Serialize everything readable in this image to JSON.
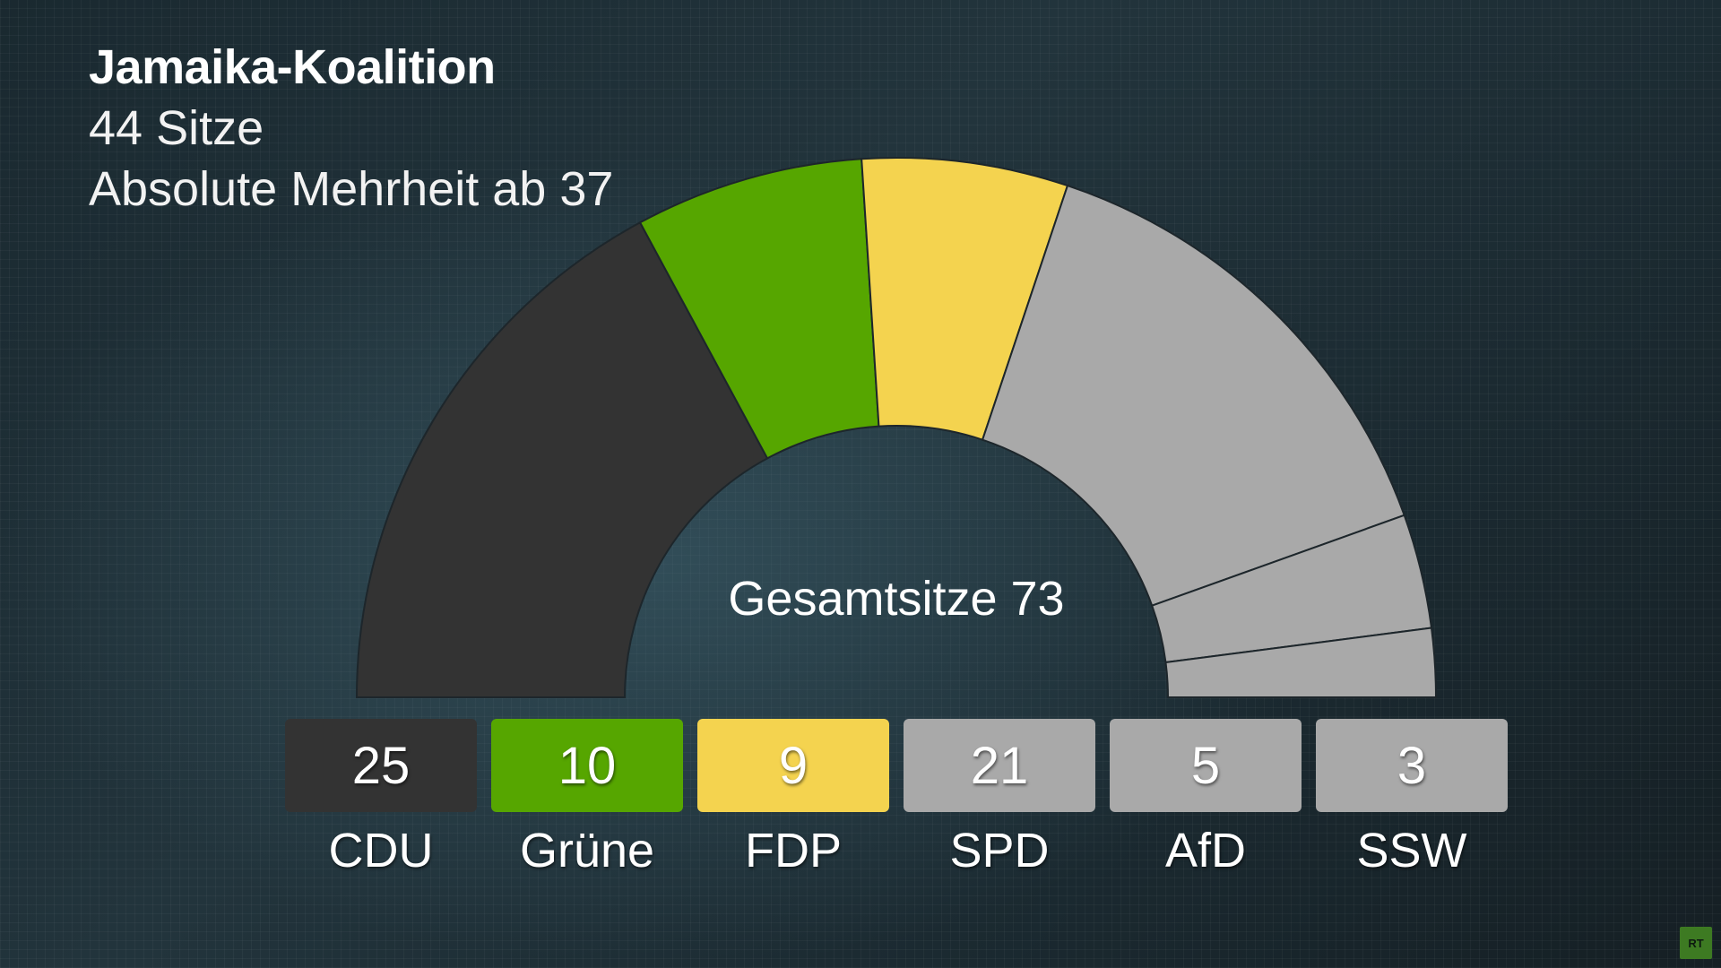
{
  "header": {
    "title": "Jamaika-Koalition",
    "seats_line": "44 Sitze",
    "majority_line": "Absolute Mehrheit ab 37"
  },
  "center_label": "Gesamtsitze 73",
  "logo_text": "RT",
  "chart_data": {
    "type": "pie",
    "variant": "semicircle-parliament",
    "title": "Jamaika-Koalition",
    "total": 73,
    "majority": 37,
    "coalition_seats": 44,
    "categories": [
      "CDU",
      "Grüne",
      "FDP",
      "SPD",
      "AfD",
      "SSW"
    ],
    "values": [
      25,
      10,
      9,
      21,
      5,
      3
    ],
    "colors": [
      "#333333",
      "#56a600",
      "#f4d34f",
      "#a9a9a9",
      "#a9a9a9",
      "#a9a9a9"
    ]
  },
  "parties": [
    {
      "name": "CDU",
      "seats": "25",
      "color": "#333333"
    },
    {
      "name": "Grüne",
      "seats": "10",
      "color": "#56a600"
    },
    {
      "name": "FDP",
      "seats": "9",
      "color": "#f4d34f"
    },
    {
      "name": "SPD",
      "seats": "21",
      "color": "#a9a9a9"
    },
    {
      "name": "AfD",
      "seats": "5",
      "color": "#a9a9a9"
    },
    {
      "name": "SSW",
      "seats": "3",
      "color": "#a9a9a9"
    }
  ]
}
